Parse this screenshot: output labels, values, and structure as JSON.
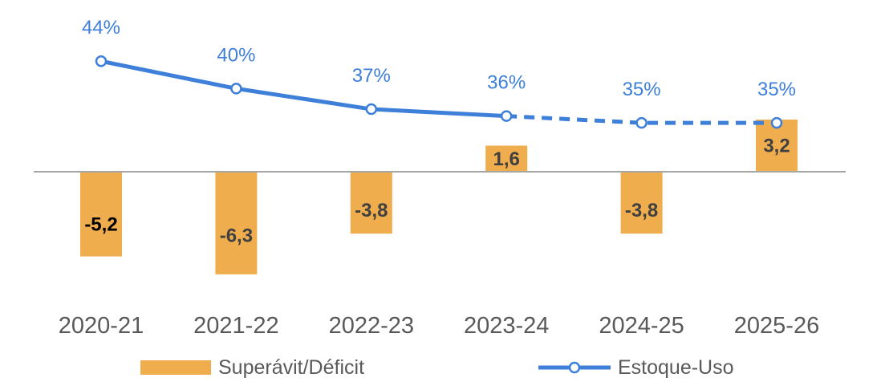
{
  "chart_data": {
    "type": "bar",
    "categories": [
      "2020-21",
      "2021-22",
      "2022-23",
      "2023-24",
      "2024-25",
      "2025-26"
    ],
    "series": [
      {
        "name": "Superávit/Déficit",
        "type": "bar",
        "values": [
          -5.2,
          -6.3,
          -3.8,
          1.6,
          -3.8,
          3.2
        ],
        "value_labels": [
          "-5,2",
          "-6,3",
          "-3,8",
          "1,6",
          "-3,8",
          "3,2"
        ],
        "color": "#F0AD4E"
      },
      {
        "name": "Estoque-Uso",
        "type": "line",
        "values": [
          44,
          40,
          37,
          36,
          35,
          35
        ],
        "value_labels": [
          "44%",
          "40%",
          "37%",
          "36%",
          "35%",
          "35%"
        ],
        "unit": "%",
        "projected_from_index": 3,
        "color": "#3E7FD9"
      }
    ],
    "title": "",
    "xlabel": "",
    "ylabel": "",
    "legend_position": "bottom",
    "grid": false
  }
}
